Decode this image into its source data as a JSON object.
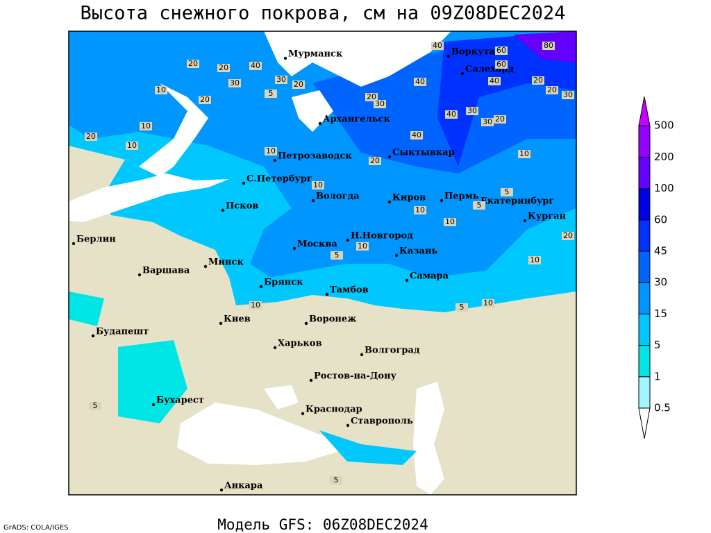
{
  "title": "Высота снежного покрова, см на 09Z08DEC2024",
  "footer": "Модель GFS: 06Z08DEC2024",
  "credit": "GrADS: COLA/IGES",
  "cities": [
    "Мурманск",
    "Воркута",
    "Салехард",
    "Архангельск",
    "Сыктывкар",
    "Петрозаводск",
    "С.Петербург",
    "Вологда",
    "Киров",
    "Пермь",
    "Екатеринбург",
    "Курган",
    "Псков",
    "Берлин",
    "Н.Новгород",
    "Москва",
    "Казань",
    "Варшава",
    "Минск",
    "Самара",
    "Брянск",
    "Тамбов",
    "Киев",
    "Воронеж",
    "Будапешт",
    "Харьков",
    "Волгоград",
    "Ростов-на-Дону",
    "Бухарест",
    "Краснодар",
    "Ставрополь",
    "Анкара"
  ],
  "contour_labels": [
    40,
    60,
    80,
    60,
    40,
    20,
    20,
    40,
    30,
    20,
    5,
    20,
    20,
    20,
    10,
    20,
    10,
    30,
    40,
    30,
    30,
    20,
    30,
    40,
    40,
    30,
    20,
    10,
    10,
    20,
    5,
    10,
    10,
    10,
    5,
    10,
    20,
    10,
    5,
    10,
    10,
    10,
    5,
    5,
    5
  ],
  "legend": {
    "levels": [
      0.5,
      1,
      5,
      15,
      30,
      45,
      60,
      100,
      200,
      500
    ],
    "colors": [
      "#ffffff",
      "#a0f5ff",
      "#00e6e6",
      "#00c8ff",
      "#0096ff",
      "#0064ff",
      "#0032ff",
      "#0000e6",
      "#6400ff",
      "#9600ff",
      "#c800ff"
    ]
  }
}
